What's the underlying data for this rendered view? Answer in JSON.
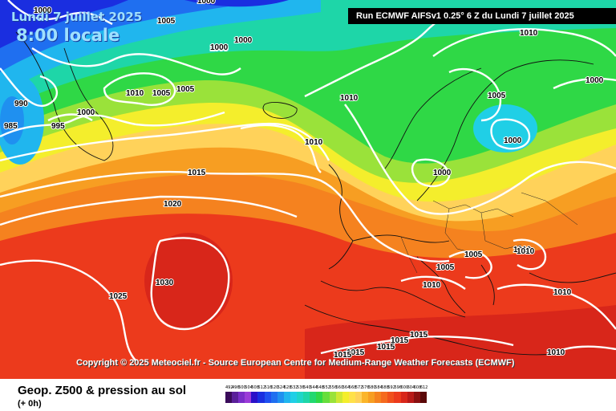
{
  "header": {
    "date": "Lundi 7 juillet 2025",
    "local_time": "8:00 locale",
    "run": "Run ECMWF AIFSv1 0.25° 6 Z du Lundi 7 juillet 2025"
  },
  "copyright": "Copyright © 2025 Meteociel.fr - Source European Centre for Medium-Range Weather Forecasts (ECMWF)",
  "footer": {
    "parameter": "Geop. Z500 & pression au sol",
    "step": "(+ 0h)"
  },
  "colors": {
    "low_purple": "#5a1f9a",
    "deep_blue": "#1a2ee0",
    "blue": "#1f6ff0",
    "cyan": "#20b6ee",
    "teal": "#1ed6a8",
    "green": "#2fd846",
    "lime": "#9ae23a",
    "yellow": "#f4ee2c",
    "light_yellow": "#ffe88a",
    "orange": "#f79e22",
    "orange_red": "#f56a1e",
    "red": "#ec3a1c",
    "isobar": "#ffffff"
  },
  "scale": {
    "labels": [
      "492",
      "496",
      "500",
      "504",
      "508",
      "512",
      "516",
      "520",
      "524",
      "528",
      "532",
      "536",
      "540",
      "544",
      "548",
      "552",
      "556",
      "560",
      "564",
      "568",
      "572",
      "576",
      "580",
      "584",
      "588",
      "592",
      "596",
      "600",
      "604",
      "608",
      "612"
    ],
    "colors": [
      "#3a0b5a",
      "#5a1f9a",
      "#7a2dc8",
      "#9b3bd8",
      "#2a10c8",
      "#1a2ee0",
      "#1f50f0",
      "#1f6ff0",
      "#1f90f0",
      "#20b6ee",
      "#20cfe6",
      "#1ed6c8",
      "#1ed6a8",
      "#22d870",
      "#2fd846",
      "#66de3c",
      "#9ae23a",
      "#cfe734",
      "#f4ee2c",
      "#ffe14a",
      "#ffd25a",
      "#fbb52a",
      "#f79e22",
      "#f5821f",
      "#f56a1e",
      "#f0501c",
      "#ec3a1c",
      "#d8261a",
      "#b81a18",
      "#8a1010",
      "#5a0808"
    ]
  },
  "isobar_labels": [
    "1000",
    "1005",
    "1000",
    "1000",
    "1010",
    "1005",
    "1005",
    "990",
    "985",
    "995",
    "1000",
    "1010",
    "1005",
    "1000",
    "1000",
    "1010",
    "1010",
    "1000",
    "1015",
    "1020",
    "1030",
    "1025",
    "1005",
    "1010",
    "1005",
    "1010",
    "1010",
    "1015",
    "1015",
    "1015",
    "1015",
    "1010",
    "1015",
    "1010",
    "1005",
    "1000"
  ]
}
